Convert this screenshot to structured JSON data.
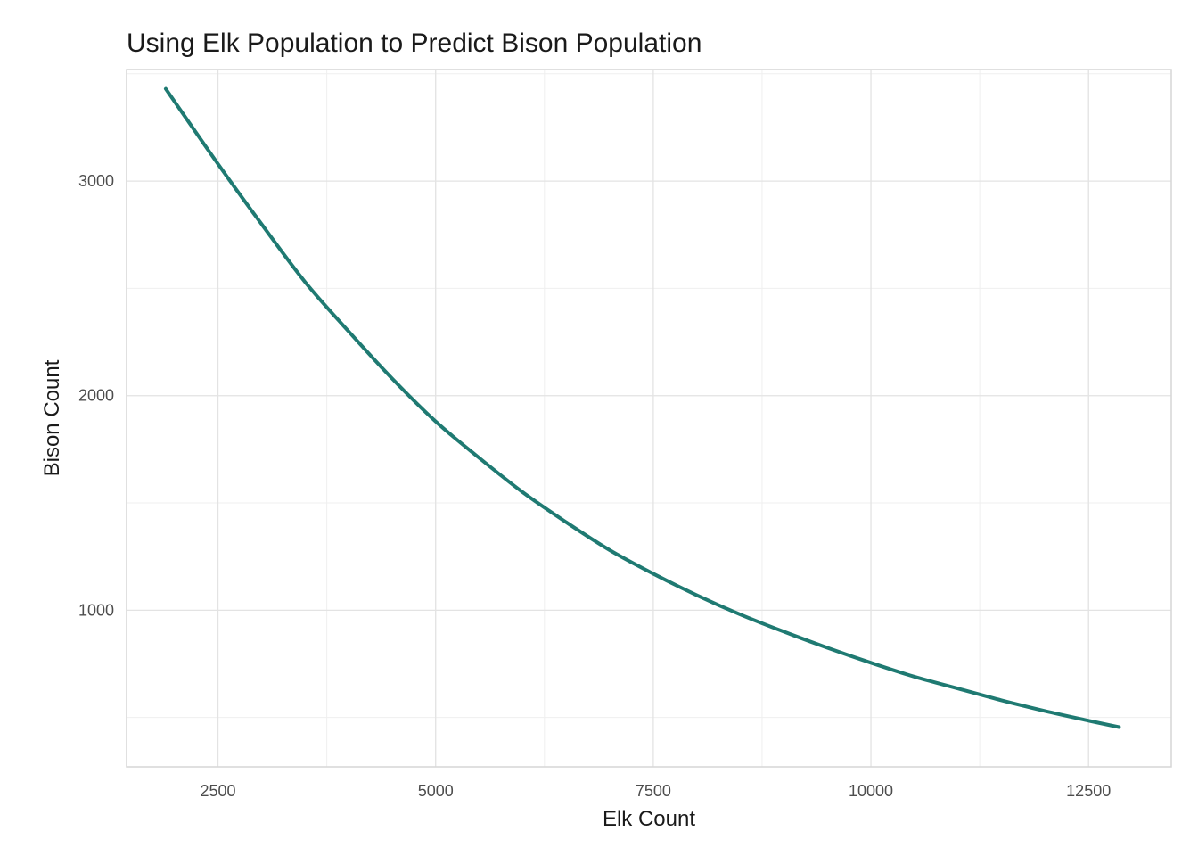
{
  "chart_data": {
    "type": "line",
    "title": "Using Elk Population to Predict Bison Population",
    "xlabel": "Elk Count",
    "ylabel": "Bison Count",
    "xlim": [
      1450,
      13450
    ],
    "ylim": [
      270,
      3520
    ],
    "x_ticks": [
      2500,
      5000,
      7500,
      10000,
      12500
    ],
    "x_tick_labels": [
      "2500",
      "5000",
      "7500",
      "10000",
      "12500"
    ],
    "y_ticks": [
      1000,
      2000,
      3000
    ],
    "y_tick_labels": [
      "1000",
      "2000",
      "3000"
    ],
    "grid": true,
    "legend": "none",
    "series": [
      {
        "color": "#1f7a72",
        "x": [
          1900,
          2500,
          3000,
          3500,
          4000,
          4500,
          5000,
          5500,
          6000,
          6500,
          7000,
          7500,
          8000,
          8500,
          9000,
          9500,
          10000,
          10500,
          11000,
          11500,
          12000,
          12500,
          12850
        ],
        "y": [
          3430,
          3080,
          2800,
          2530,
          2300,
          2080,
          1880,
          1710,
          1550,
          1410,
          1280,
          1170,
          1070,
          980,
          900,
          825,
          755,
          690,
          635,
          580,
          530,
          485,
          455
        ]
      }
    ]
  }
}
